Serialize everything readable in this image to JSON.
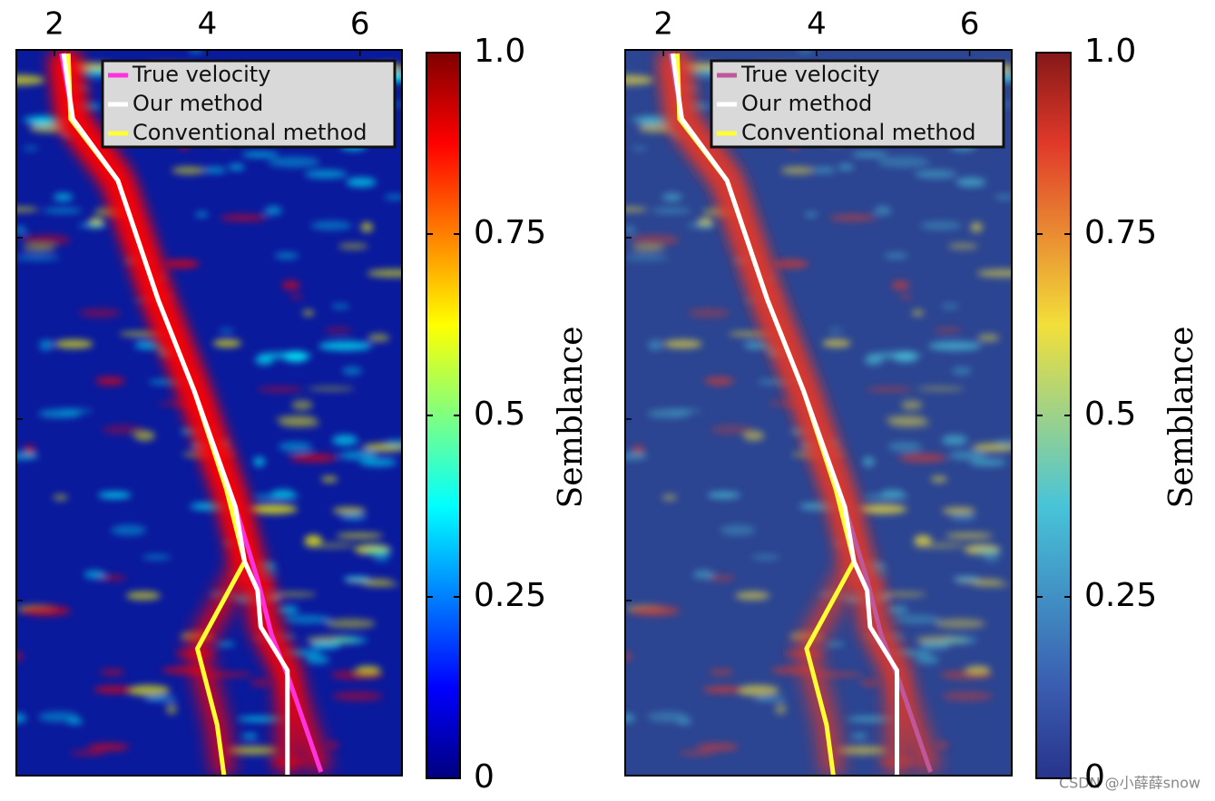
{
  "chart_data": [
    {
      "type": "semblance",
      "colormap": "jet",
      "xlim": [
        1.5,
        6.55
      ],
      "xticks": [
        2,
        4,
        6
      ],
      "ylim": [
        0,
        4
      ],
      "series": [
        {
          "name": "True velocity",
          "color": "#ff33dd",
          "x": [
            2.09,
            2.24,
            2.83,
            3.36,
            3.83,
            4.37,
            4.66,
            4.84,
            5.08,
            5.49
          ],
          "values": [
            0.02,
            0.38,
            0.72,
            1.38,
            1.88,
            2.52,
            2.92,
            3.22,
            3.48,
            3.98
          ]
        },
        {
          "name": "Our method",
          "color": "#ffffff",
          "x": [
            2.12,
            2.24,
            2.83,
            3.36,
            3.83,
            4.37,
            4.49,
            4.66,
            4.7,
            5.05,
            5.05
          ],
          "values": [
            0.02,
            0.38,
            0.72,
            1.38,
            1.88,
            2.52,
            2.82,
            2.98,
            3.18,
            3.42,
            4.0
          ]
        },
        {
          "name": "Conventional method",
          "color": "#ffff33",
          "x": [
            2.18,
            2.21,
            2.83,
            3.36,
            3.83,
            4.25,
            4.49,
            3.87,
            4.13,
            4.22
          ],
          "values": [
            0.02,
            0.38,
            0.72,
            1.38,
            1.88,
            2.42,
            2.82,
            3.3,
            3.72,
            4.0
          ]
        }
      ],
      "clim": [
        0,
        1
      ],
      "cticks": [
        0,
        0.25,
        0.5,
        0.75,
        {
          "value": 1,
          "label": "1.0"
        }
      ],
      "colorbar_label": "Semblance"
    },
    {
      "type": "semblance",
      "colormap": "muted-jet",
      "xlim": [
        1.5,
        6.55
      ],
      "xticks": [
        2,
        4,
        6
      ],
      "ylim": [
        0,
        4
      ],
      "series": [
        {
          "name": "True velocity",
          "color": "#c0579a",
          "x": [
            2.09,
            2.24,
            2.83,
            3.36,
            3.83,
            4.37,
            4.66,
            4.84,
            5.08,
            5.49
          ],
          "values": [
            0.02,
            0.38,
            0.72,
            1.38,
            1.88,
            2.52,
            2.92,
            3.22,
            3.48,
            3.98
          ]
        },
        {
          "name": "Our method",
          "color": "#ffffff",
          "x": [
            2.12,
            2.24,
            2.83,
            3.36,
            3.83,
            4.37,
            4.49,
            4.66,
            4.7,
            5.05,
            5.05
          ],
          "values": [
            0.02,
            0.38,
            0.72,
            1.38,
            1.88,
            2.52,
            2.82,
            2.98,
            3.18,
            3.42,
            4.0
          ]
        },
        {
          "name": "Conventional method",
          "color": "#ffff33",
          "x": [
            2.18,
            2.21,
            2.83,
            3.36,
            3.83,
            4.25,
            4.49,
            3.87,
            4.13,
            4.22
          ],
          "values": [
            0.02,
            0.38,
            0.72,
            1.38,
            1.88,
            2.42,
            2.82,
            3.3,
            3.72,
            4.0
          ]
        }
      ],
      "clim": [
        0,
        1
      ],
      "cticks": [
        0,
        0.25,
        0.5,
        0.75,
        {
          "value": 1,
          "label": "1.0"
        }
      ],
      "colorbar_label": "Semblance"
    }
  ],
  "watermark": "CSDN @小薛薛snow"
}
